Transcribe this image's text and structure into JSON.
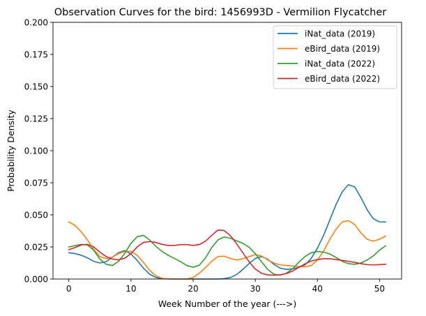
{
  "chart_data": {
    "type": "line",
    "title": "Observation Curves for the bird: 1456993D - Vermilion Flycatcher",
    "xlabel": "Week Number of the year (--->)",
    "ylabel": "Probability Density",
    "xlim": [
      -2.55,
      53.55
    ],
    "ylim": [
      0,
      0.2
    ],
    "xticks": [
      0,
      10,
      20,
      30,
      40,
      50
    ],
    "xtick_labels": [
      "0",
      "10",
      "20",
      "30",
      "40",
      "50"
    ],
    "yticks": [
      0,
      0.025,
      0.05,
      0.075,
      0.1,
      0.125,
      0.15,
      0.175,
      0.2
    ],
    "ytick_labels": [
      "0.000",
      "0.025",
      "0.050",
      "0.075",
      "0.100",
      "0.125",
      "0.150",
      "0.175",
      "0.200"
    ],
    "grid": false,
    "legend_position": "top-right",
    "x": [
      0,
      1,
      2,
      3,
      4,
      5,
      6,
      7,
      8,
      9,
      10,
      11,
      12,
      13,
      14,
      15,
      16,
      17,
      18,
      19,
      20,
      21,
      22,
      23,
      24,
      25,
      26,
      27,
      28,
      29,
      30,
      31,
      32,
      33,
      34,
      35,
      36,
      37,
      38,
      39,
      40,
      41,
      42,
      43,
      44,
      45,
      46,
      47,
      48,
      49,
      50,
      51
    ],
    "series": [
      {
        "name": "iNat_data (2019)",
        "color": "#1f77b4",
        "values": [
          0.0205,
          0.0198,
          0.0185,
          0.0165,
          0.0138,
          0.0125,
          0.0135,
          0.017,
          0.0205,
          0.0222,
          0.0195,
          0.0145,
          0.0085,
          0.0038,
          0.0012,
          0.0003,
          0.0001,
          0.0,
          0.0,
          0.0,
          0.0,
          0.0,
          0.0,
          0.0,
          0.0,
          0.0003,
          0.0012,
          0.0035,
          0.0075,
          0.012,
          0.016,
          0.0175,
          0.0155,
          0.0115,
          0.0085,
          0.0075,
          0.008,
          0.009,
          0.011,
          0.016,
          0.024,
          0.034,
          0.046,
          0.058,
          0.068,
          0.0735,
          0.0718,
          0.0635,
          0.054,
          0.047,
          0.0445,
          0.0445
        ]
      },
      {
        "name": "eBird_data (2019)",
        "color": "#ff7f0e",
        "values": [
          0.0445,
          0.0418,
          0.0368,
          0.0305,
          0.023,
          0.0175,
          0.0158,
          0.017,
          0.0198,
          0.0215,
          0.0215,
          0.0185,
          0.013,
          0.0068,
          0.0025,
          0.0006,
          0.0001,
          0.0,
          0.0,
          0.0001,
          0.0012,
          0.0045,
          0.009,
          0.0138,
          0.0175,
          0.0178,
          0.016,
          0.0148,
          0.0158,
          0.0175,
          0.019,
          0.018,
          0.015,
          0.0125,
          0.011,
          0.0105,
          0.0102,
          0.0098,
          0.0095,
          0.0105,
          0.0148,
          0.0218,
          0.031,
          0.0388,
          0.0445,
          0.0455,
          0.0425,
          0.036,
          0.031,
          0.0295,
          0.031,
          0.0335
        ]
      },
      {
        "name": "iNat_data (2022)",
        "color": "#2ca02c",
        "values": [
          0.025,
          0.026,
          0.027,
          0.0265,
          0.0225,
          0.0155,
          0.0115,
          0.0105,
          0.0138,
          0.02,
          0.0278,
          0.033,
          0.034,
          0.0305,
          0.0255,
          0.0215,
          0.0185,
          0.016,
          0.0135,
          0.0105,
          0.0092,
          0.0108,
          0.0165,
          0.0245,
          0.0305,
          0.0328,
          0.0318,
          0.0298,
          0.0278,
          0.0248,
          0.0198,
          0.0135,
          0.0075,
          0.0038,
          0.003,
          0.0045,
          0.008,
          0.013,
          0.0175,
          0.0205,
          0.0215,
          0.021,
          0.0195,
          0.0168,
          0.0138,
          0.012,
          0.0115,
          0.0125,
          0.0148,
          0.018,
          0.0225,
          0.026
        ]
      },
      {
        "name": "eBird_data (2022)",
        "color": "#d62728",
        "values": [
          0.0228,
          0.0245,
          0.0265,
          0.027,
          0.025,
          0.021,
          0.0175,
          0.0155,
          0.015,
          0.0162,
          0.0198,
          0.025,
          0.0285,
          0.0292,
          0.0285,
          0.027,
          0.0262,
          0.0262,
          0.0268,
          0.0268,
          0.0262,
          0.0268,
          0.0295,
          0.034,
          0.0382,
          0.0378,
          0.0338,
          0.0275,
          0.0205,
          0.0135,
          0.0078,
          0.0045,
          0.0032,
          0.003,
          0.0033,
          0.0042,
          0.0062,
          0.009,
          0.0118,
          0.014,
          0.0152,
          0.0158,
          0.0158,
          0.0152,
          0.0145,
          0.0138,
          0.013,
          0.012,
          0.0112,
          0.011,
          0.0112,
          0.0115
        ]
      }
    ]
  }
}
